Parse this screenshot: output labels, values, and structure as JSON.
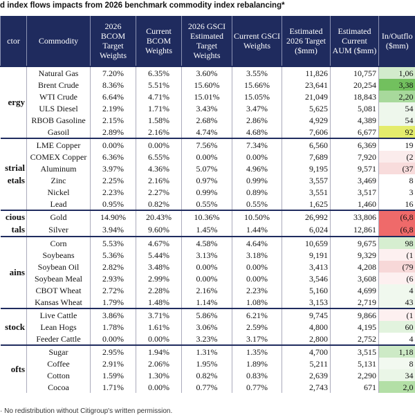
{
  "title": "d index flows impacts from 2026 benchmark commodity index rebalancing*",
  "table": {
    "headers": [
      "ctor",
      "Commodity",
      "2026 BCOM Target Weights",
      "Current BCOM Weights",
      "2026 GSCI Estimated Target Weights",
      "Current GSCI Weights",
      "Estimated 2026 Target ($mm)",
      "Estimated Current AUM ($mm)",
      "In/Outflo ($mm)"
    ],
    "sectors": [
      {
        "label": "ergy",
        "rows": [
          {
            "cells": [
              "Natural Gas",
              "7.20%",
              "6.35%",
              "3.60%",
              "3.55%",
              "11,826",
              "10,757",
              "1,06"
            ],
            "color": "#d2ebcc"
          },
          {
            "cells": [
              "Brent Crude",
              "8.36%",
              "5.51%",
              "15.60%",
              "15.66%",
              "23,641",
              "20,254",
              "3,38"
            ],
            "color": "#72c05e"
          },
          {
            "cells": [
              "WTI Crude",
              "6.64%",
              "4.71%",
              "15.01%",
              "15.05%",
              "21,049",
              "18,843",
              "2,20"
            ],
            "color": "#a8d99c"
          },
          {
            "cells": [
              "ULS Diesel",
              "2.19%",
              "1.71%",
              "3.43%",
              "3.47%",
              "5,625",
              "5,081",
              "54"
            ],
            "color": "#eef7ec"
          },
          {
            "cells": [
              "RBOB Gasoline",
              "2.15%",
              "1.58%",
              "2.68%",
              "2.86%",
              "4,929",
              "4,389",
              "54"
            ],
            "color": "#eef7ec"
          },
          {
            "cells": [
              "Gasoil",
              "2.89%",
              "2.16%",
              "4.74%",
              "4.68%",
              "7,606",
              "6,677",
              "92"
            ],
            "color": "#e4ec6c"
          }
        ]
      },
      {
        "label": "strial\netals",
        "rows": [
          {
            "cells": [
              "LME Copper",
              "0.00%",
              "0.00%",
              "7.56%",
              "7.34%",
              "6,560",
              "6,369",
              "19"
            ],
            "color": "#ffffff"
          },
          {
            "cells": [
              "COMEX Copper",
              "6.36%",
              "6.55%",
              "0.00%",
              "0.00%",
              "7,689",
              "7,920",
              "(2"
            ],
            "color": "#fbecec"
          },
          {
            "cells": [
              "Aluminum",
              "3.97%",
              "4.36%",
              "5.07%",
              "4.96%",
              "9,195",
              "9,571",
              "(37"
            ],
            "color": "#f8dcdc"
          },
          {
            "cells": [
              "Zinc",
              "2.25%",
              "2.16%",
              "0.97%",
              "0.99%",
              "3,557",
              "3,469",
              "8"
            ],
            "color": "#ffffff"
          },
          {
            "cells": [
              "Nickel",
              "2.23%",
              "2.27%",
              "0.99%",
              "0.89%",
              "3,551",
              "3,517",
              "3"
            ],
            "color": "#ffffff"
          },
          {
            "cells": [
              "Lead",
              "0.95%",
              "0.82%",
              "0.55%",
              "0.55%",
              "1,625",
              "1,460",
              "16"
            ],
            "color": "#ffffff"
          }
        ]
      },
      {
        "label": "cious\ntals",
        "rows": [
          {
            "cells": [
              "Gold",
              "14.90%",
              "20.43%",
              "10.36%",
              "10.50%",
              "26,992",
              "33,806",
              "(6,8"
            ],
            "color": "#ef6a6a"
          },
          {
            "cells": [
              "Silver",
              "3.94%",
              "9.60%",
              "1.45%",
              "1.44%",
              "6,024",
              "12,861",
              "(6,8"
            ],
            "color": "#ef6a6a"
          }
        ]
      },
      {
        "label": "ains",
        "rows": [
          {
            "cells": [
              "Corn",
              "5.53%",
              "4.67%",
              "4.58%",
              "4.64%",
              "10,659",
              "9,675",
              "98"
            ],
            "color": "#d6eed0"
          },
          {
            "cells": [
              "Soybeans",
              "5.36%",
              "5.44%",
              "3.13%",
              "3.18%",
              "9,191",
              "9,329",
              "(1"
            ],
            "color": "#fdf0f0"
          },
          {
            "cells": [
              "Soybean Oil",
              "2.82%",
              "3.48%",
              "0.00%",
              "0.00%",
              "3,413",
              "4,208",
              "(79"
            ],
            "color": "#f7d8d8"
          },
          {
            "cells": [
              "Soybean Meal",
              "2.93%",
              "2.99%",
              "0.00%",
              "0.00%",
              "3,546",
              "3,608",
              "(6"
            ],
            "color": "#fdf0f0"
          },
          {
            "cells": [
              "CBOT Wheat",
              "2.72%",
              "2.28%",
              "2.16%",
              "2.23%",
              "5,160",
              "4,699",
              "4"
            ],
            "color": "#f0f8ee"
          },
          {
            "cells": [
              "Kansas Wheat",
              "1.79%",
              "1.48%",
              "1.14%",
              "1.08%",
              "3,153",
              "2,719",
              "43"
            ],
            "color": "#f0f8ee"
          }
        ]
      },
      {
        "label": "stock",
        "rows": [
          {
            "cells": [
              "Live Cattle",
              "3.86%",
              "3.71%",
              "5.86%",
              "6.21%",
              "9,745",
              "9,866",
              "(1"
            ],
            "color": "#fdf0f0"
          },
          {
            "cells": [
              "Lean Hogs",
              "1.78%",
              "1.61%",
              "3.06%",
              "2.59%",
              "4,800",
              "4,195",
              "60"
            ],
            "color": "#e2f3de"
          },
          {
            "cells": [
              "Feeder Cattle",
              "0.00%",
              "0.00%",
              "3.23%",
              "3.17%",
              "2,800",
              "2,752",
              "4"
            ],
            "color": "#ffffff"
          }
        ]
      },
      {
        "label": "ofts",
        "rows": [
          {
            "cells": [
              "Sugar",
              "2.95%",
              "1.94%",
              "1.31%",
              "1.35%",
              "4,700",
              "3,515",
              "1,18"
            ],
            "color": "#cdeac6"
          },
          {
            "cells": [
              "Coffee",
              "2.91%",
              "2.06%",
              "1.95%",
              "1.89%",
              "5,211",
              "5,131",
              "8"
            ],
            "color": "#f2f9f0"
          },
          {
            "cells": [
              "Cotton",
              "1.59%",
              "1.30%",
              "0.82%",
              "0.83%",
              "2,639",
              "2,290",
              "34"
            ],
            "color": "#eaf6e7"
          },
          {
            "cells": [
              "Cocoa",
              "1.71%",
              "0.00%",
              "0.77%",
              "0.77%",
              "2,743",
              "671",
              "2,0"
            ],
            "color": "#b3dfa6"
          }
        ]
      }
    ]
  },
  "footer": "· No redistribution without Citigroup's written permission."
}
